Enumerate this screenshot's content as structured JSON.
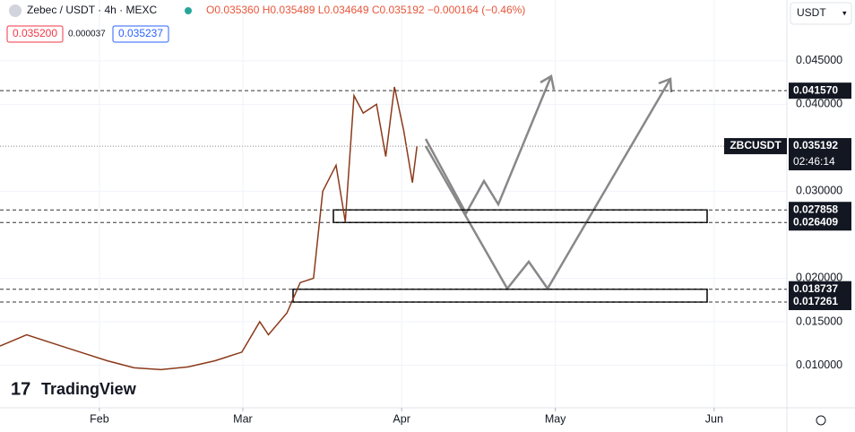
{
  "header": {
    "symbol": "Zebec / USDT · 4h · MEXC",
    "ohlc": "O0.035360 H0.035489 L0.034649 C0.035192 −0.000164 (−0.46%)",
    "bid": "0.035200",
    "spread": "0.000037",
    "ask": "0.035237",
    "currency": "USDT",
    "logo": "TradingView"
  },
  "chart_data": {
    "type": "line",
    "x": [
      12.6,
      17.8,
      23,
      28.3,
      33.6,
      38.8,
      44,
      49.3,
      54.5,
      59.8,
      63.3,
      65,
      68.6,
      71.2,
      73.8,
      75.6,
      78.2,
      80,
      81.7,
      83.5,
      86.1,
      87.9,
      89.6,
      91.4,
      93.1,
      94
    ],
    "series": [
      {
        "name": "ZBCUSDT",
        "color": "#8b3a1a",
        "values": [
          0.0122,
          0.0135,
          0.0125,
          0.0115,
          0.0105,
          0.0097,
          0.0095,
          0.0098,
          0.0105,
          0.0115,
          0.015,
          0.0135,
          0.016,
          0.0195,
          0.02,
          0.03,
          0.033,
          0.0265,
          0.041,
          0.039,
          0.04,
          0.034,
          0.042,
          0.037,
          0.031,
          0.0352
        ]
      }
    ],
    "xlim": [
      12.6,
      166.2
    ],
    "xticks": [
      {
        "value": 32,
        "label": "Feb"
      },
      {
        "value": 60,
        "label": "Mar"
      },
      {
        "value": 91,
        "label": "Apr"
      },
      {
        "value": 121,
        "label": "May"
      },
      {
        "value": 152,
        "label": "Jun"
      }
    ],
    "ylim": [
      0.0051,
      0.052
    ],
    "yticks": [
      {
        "value": 0.045,
        "label": "0.045000"
      },
      {
        "value": 0.04,
        "label": "0.040000"
      },
      {
        "value": 0.03,
        "label": "0.030000"
      },
      {
        "value": 0.02,
        "label": "0.020000"
      },
      {
        "value": 0.015,
        "label": "0.015000"
      },
      {
        "value": 0.01,
        "label": "0.010000"
      }
    ],
    "grid": true,
    "last_price": {
      "value": 0.035192,
      "label": "0.035192",
      "countdown": "02:46:14"
    },
    "levels": [
      {
        "value": 0.04157,
        "label": "0.041570"
      },
      {
        "value": 0.027858,
        "label": "0.027858"
      },
      {
        "value": 0.026409,
        "label": "0.026409"
      },
      {
        "value": 0.018737,
        "label": "0.018737"
      },
      {
        "value": 0.017261,
        "label": "0.017261"
      }
    ]
  }
}
